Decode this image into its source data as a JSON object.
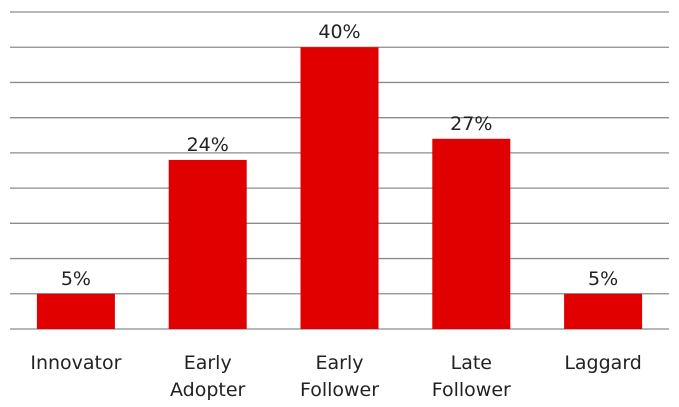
{
  "chart_data": {
    "type": "bar",
    "categories": [
      [
        "Innovator"
      ],
      [
        "Early",
        "Adopter"
      ],
      [
        "Early",
        "Follower"
      ],
      [
        "Late",
        "Follower"
      ],
      [
        "Laggard"
      ]
    ],
    "values": [
      5,
      24,
      40,
      27,
      5
    ],
    "value_labels": [
      "5%",
      "24%",
      "40%",
      "27%",
      "5%"
    ],
    "value_unit": "%",
    "ylim": [
      0,
      45
    ],
    "grid": true,
    "legend": "none",
    "bar_color": "#e00000",
    "grid_color": "#8c8c8c",
    "text_color": "#222222"
  }
}
